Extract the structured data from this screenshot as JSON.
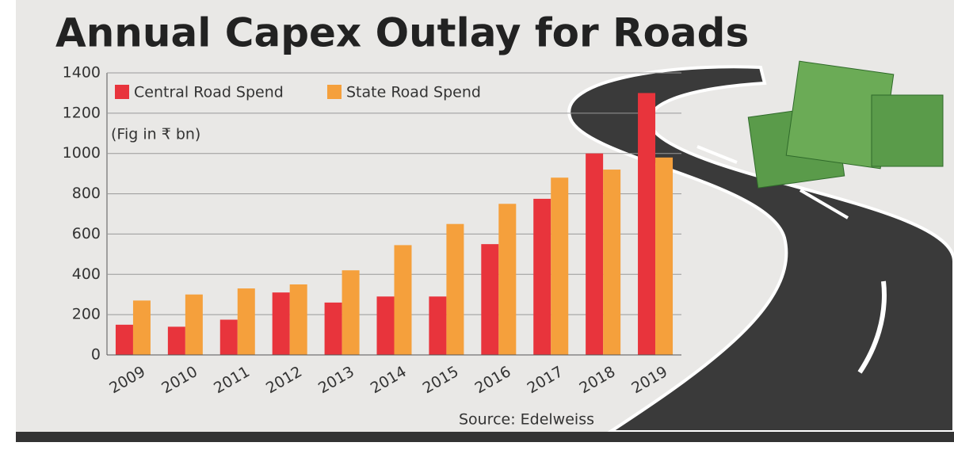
{
  "chart_data": {
    "type": "bar",
    "title": "Annual Capex Outlay for Roads",
    "subtitle": "(Fig in ₹ bn)",
    "source": "Source: Edelweiss",
    "categories": [
      "2009",
      "2010",
      "2011",
      "2012",
      "2013",
      "2014",
      "2015",
      "2016",
      "2017",
      "2018",
      "2019"
    ],
    "series": [
      {
        "name": "Central Road Spend",
        "color": "#e8343c",
        "values": [
          150,
          140,
          175,
          310,
          260,
          290,
          290,
          550,
          775,
          1000,
          1300
        ]
      },
      {
        "name": "State Road Spend",
        "color": "#f5a03c",
        "values": [
          270,
          300,
          330,
          350,
          420,
          545,
          650,
          750,
          880,
          920,
          980
        ]
      }
    ],
    "ylim": [
      0,
      1400
    ],
    "yticks": [
      0,
      200,
      400,
      600,
      800,
      1000,
      1200,
      1400
    ],
    "grid": true
  }
}
